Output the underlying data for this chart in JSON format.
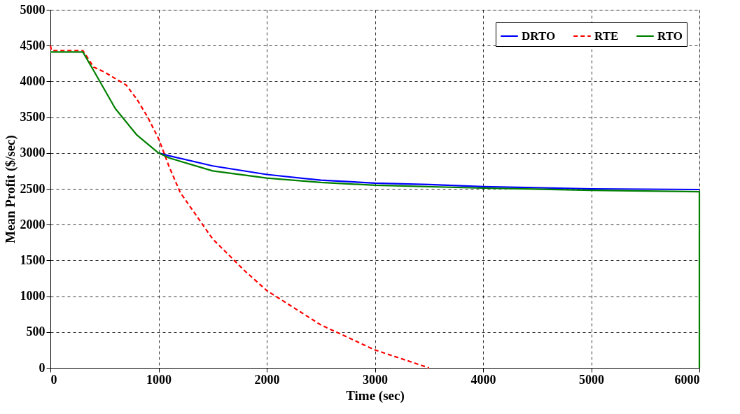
{
  "chart_data": {
    "type": "line",
    "xlabel": "Time (sec)",
    "ylabel": "Mean Profit ($/sec)",
    "xlim": [
      0,
      6000
    ],
    "xticks": [
      0,
      1000,
      2000,
      3000,
      4000,
      5000,
      6000
    ],
    "ylim": [
      0,
      5000
    ],
    "yticks": [
      0,
      500,
      1000,
      1500,
      2000,
      2500,
      3000,
      3500,
      4000,
      4500,
      5000
    ],
    "grid": true,
    "legend": "top right",
    "marker": "none",
    "series": [
      {
        "name": "DRTO",
        "color": "#0000ff",
        "line_style": "solid",
        "x": [
          1000,
          1100,
          1500,
          2000,
          2500,
          3000,
          3500,
          4000,
          5000,
          6000
        ],
        "values": [
          3000,
          2960,
          2820,
          2700,
          2620,
          2580,
          2560,
          2530,
          2500,
          2490
        ]
      },
      {
        "name": "RTE",
        "color": "#ff0000",
        "line_style": "dashed",
        "x": [
          0,
          10,
          300,
          400,
          500,
          700,
          800,
          900,
          1000,
          1100,
          1200,
          1500,
          1800,
          2000,
          2500,
          3000,
          3500
        ],
        "values": [
          4500,
          4430,
          4430,
          4200,
          4130,
          3950,
          3750,
          3500,
          3200,
          2800,
          2450,
          1800,
          1350,
          1080,
          600,
          250,
          0
        ]
      },
      {
        "name": "RTO",
        "color": "#008000",
        "line_style": "solid",
        "x": [
          0,
          300,
          400,
          600,
          800,
          1000,
          1100,
          1500,
          2000,
          2500,
          3000,
          4000,
          5000,
          6000,
          6000
        ],
        "values": [
          4410,
          4410,
          4150,
          3620,
          3250,
          3000,
          2930,
          2750,
          2650,
          2590,
          2550,
          2510,
          2480,
          2460,
          0
        ]
      }
    ]
  }
}
